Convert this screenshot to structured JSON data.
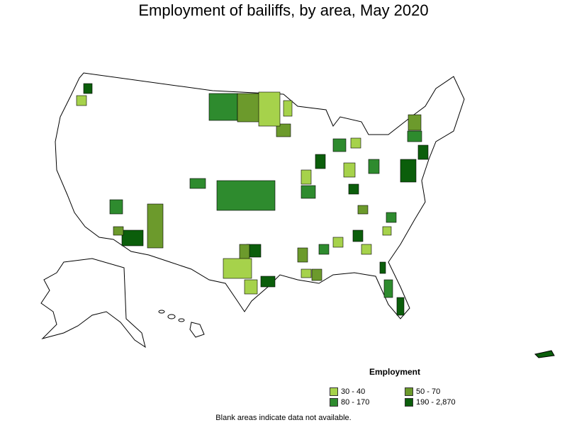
{
  "title": "Employment of bailiffs, by area, May 2020",
  "legend": {
    "title": "Employment",
    "items": [
      {
        "label": "30 - 40",
        "color": "#a6d24b"
      },
      {
        "label": "50 - 70",
        "color": "#6c9a2c"
      },
      {
        "label": "80 - 170",
        "color": "#2e8b2e"
      },
      {
        "label": "190 - 2,870",
        "color": "#0b5e0b"
      }
    ]
  },
  "footnote": "Blank areas indicate data not available."
}
